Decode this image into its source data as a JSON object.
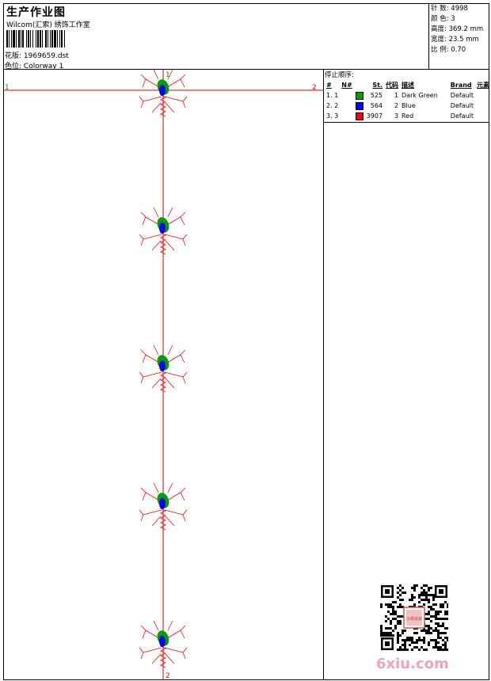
{
  "header": {
    "title": "生产作业图",
    "company": "Wilcom(汇索) 绣饰工作室",
    "design_label": "花版:",
    "design_value": "1969659.dst",
    "colorway_label": "色位:",
    "colorway_value": "Colorway 1"
  },
  "stats": [
    {
      "label": "针 数:",
      "value": "4998"
    },
    {
      "label": "颜 色:",
      "value": "3"
    },
    {
      "label": "高度:",
      "value": "369.2 mm"
    },
    {
      "label": "宽度:",
      "value": "23.5 mm"
    },
    {
      "label": "比 例:",
      "value": "0.70"
    }
  ],
  "legend": {
    "title": "停止顺序:",
    "columns": [
      "#",
      "N#",
      "St.",
      "代码",
      "描述",
      "Brand",
      "元素"
    ],
    "rows": [
      {
        "index": "1. 1",
        "color": "#00a000",
        "stitches": "525",
        "code": "1",
        "description": "Dark Green",
        "brand": "Default"
      },
      {
        "index": "2. 2",
        "color": "#0000ff",
        "stitches": "564",
        "code": "2",
        "description": "Blue",
        "brand": "Default"
      },
      {
        "index": "3. 3",
        "color": "#ff0000",
        "stitches": "3907",
        "code": "3",
        "description": "Red",
        "brand": "Default"
      }
    ]
  },
  "canvas": {
    "marker_left": "1",
    "marker_right": "2",
    "marker_top": "1",
    "marker_bottom": "2",
    "guide_color": "#e00000",
    "motif_count": 5
  },
  "watermark": "6xiu.com",
  "seal_text": "以绣会友"
}
